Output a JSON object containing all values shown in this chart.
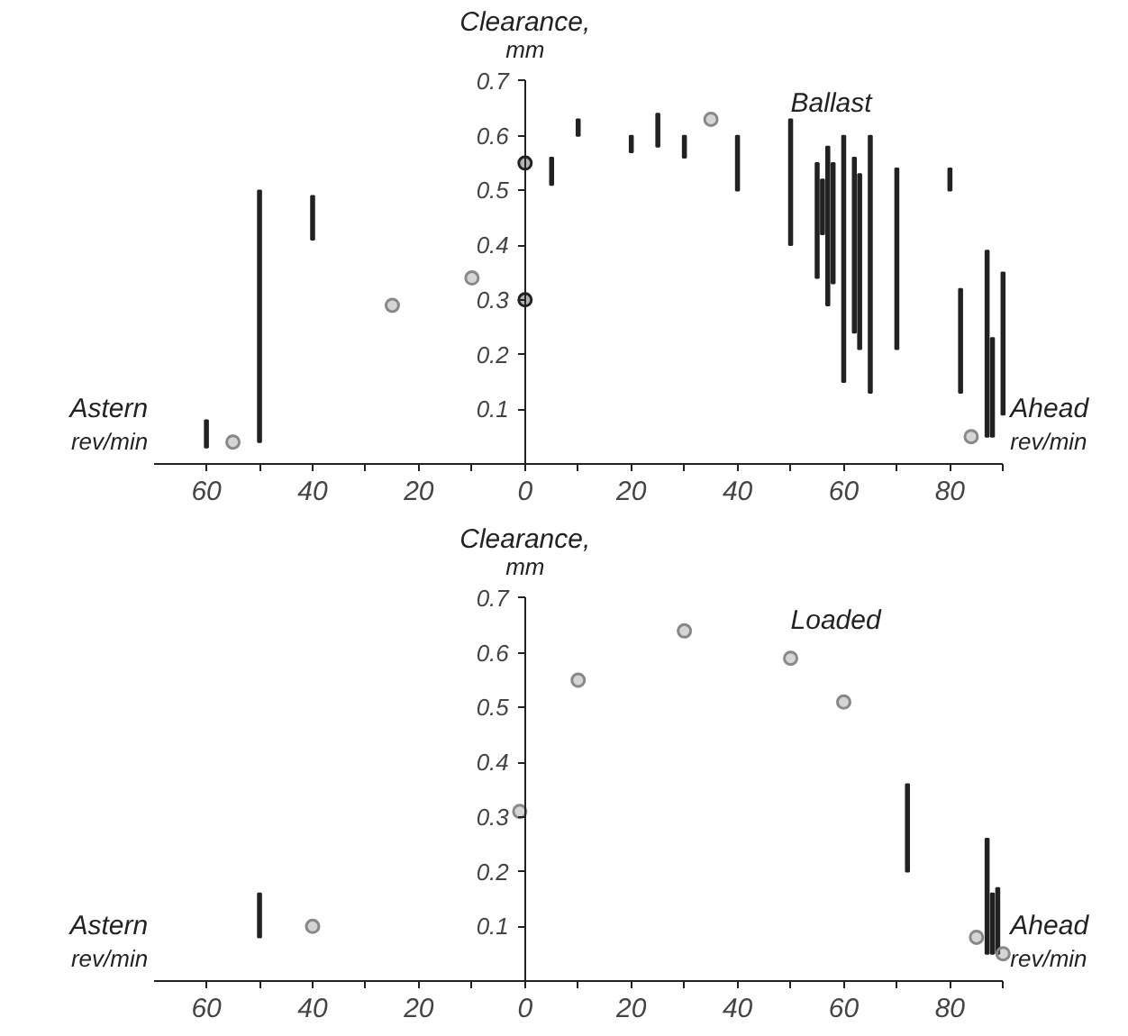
{
  "chart_data": [
    {
      "type": "bar",
      "title": "Ballast",
      "ylabel": "Clearance, mm",
      "annotations": [
        "Astern rev/min",
        "Ahead rev/min"
      ],
      "marker": "circle",
      "xlim": [
        -70,
        90
      ],
      "ylim": [
        0,
        0.7
      ],
      "xticks": [
        {
          "value": -60,
          "label": "60"
        },
        {
          "value": -50,
          "label": null
        },
        {
          "value": -40,
          "label": "40"
        },
        {
          "value": -30,
          "label": null
        },
        {
          "value": -20,
          "label": "20"
        },
        {
          "value": -10,
          "label": null
        },
        {
          "value": 0,
          "label": "0"
        },
        {
          "value": 10,
          "label": null
        },
        {
          "value": 20,
          "label": "20"
        },
        {
          "value": 30,
          "label": null
        },
        {
          "value": 40,
          "label": "40"
        },
        {
          "value": 50,
          "label": null
        },
        {
          "value": 60,
          "label": "60"
        },
        {
          "value": 70,
          "label": null
        },
        {
          "value": 80,
          "label": "80"
        },
        {
          "value": 90,
          "label": null
        }
      ],
      "yticks": [
        0.1,
        0.2,
        0.3,
        0.4,
        0.5,
        0.6,
        0.7
      ],
      "series": [
        {
          "color": "#222222",
          "x": [
            -60,
            -50,
            -40,
            5,
            10,
            20,
            25,
            30,
            40,
            50,
            55,
            56,
            57,
            58,
            60,
            62,
            63,
            65,
            70,
            80,
            82,
            87,
            88,
            90
          ],
          "base": [
            0.03,
            0.04,
            0.41,
            0.51,
            0.6,
            0.57,
            0.58,
            0.56,
            0.5,
            0.4,
            0.34,
            0.42,
            0.29,
            0.33,
            0.15,
            0.24,
            0.21,
            0.13,
            0.21,
            0.5,
            0.13,
            0.05,
            0.05,
            0.09
          ],
          "values": [
            0.05,
            0.46,
            0.08,
            0.05,
            0.03,
            0.03,
            0.06,
            0.04,
            0.1,
            0.23,
            0.21,
            0.1,
            0.29,
            0.22,
            0.45,
            0.32,
            0.32,
            0.47,
            0.33,
            0.04,
            0.19,
            0.34,
            0.18,
            0.26
          ]
        },
        {
          "type": "scatter",
          "color": "#888888",
          "x": [
            -55,
            -25,
            -10,
            35,
            84
          ],
          "values": [
            0.04,
            0.29,
            0.34,
            0.63,
            0.05
          ]
        },
        {
          "type": "scatter",
          "color": "#222222",
          "x": [
            0,
            0
          ],
          "values": [
            0.55,
            0.3
          ]
        }
      ]
    },
    {
      "type": "bar",
      "title": "Loaded",
      "ylabel": "Clearance, mm",
      "annotations": [
        "Astern rev/min",
        "Ahead rev/min"
      ],
      "marker": "circle",
      "xlim": [
        -70,
        90
      ],
      "ylim": [
        0,
        0.7
      ],
      "xticks": [
        {
          "value": -60,
          "label": "60"
        },
        {
          "value": -50,
          "label": null
        },
        {
          "value": -40,
          "label": "40"
        },
        {
          "value": -30,
          "label": null
        },
        {
          "value": -20,
          "label": "20"
        },
        {
          "value": -10,
          "label": null
        },
        {
          "value": 0,
          "label": "0"
        },
        {
          "value": 10,
          "label": null
        },
        {
          "value": 20,
          "label": "20"
        },
        {
          "value": 30,
          "label": null
        },
        {
          "value": 40,
          "label": "40"
        },
        {
          "value": 50,
          "label": null
        },
        {
          "value": 60,
          "label": "60"
        },
        {
          "value": 70,
          "label": null
        },
        {
          "value": 80,
          "label": "80"
        },
        {
          "value": 90,
          "label": null
        }
      ],
      "yticks": [
        0.1,
        0.2,
        0.3,
        0.4,
        0.5,
        0.6,
        0.7
      ],
      "series": [
        {
          "color": "#222222",
          "x": [
            -50,
            72,
            87,
            88,
            89
          ],
          "base": [
            0.08,
            0.2,
            0.05,
            0.05,
            0.05
          ],
          "values": [
            0.08,
            0.16,
            0.21,
            0.11,
            0.12
          ]
        },
        {
          "type": "scatter",
          "color": "#888888",
          "x": [
            -40,
            -1,
            10,
            30,
            50,
            60,
            85,
            90
          ],
          "values": [
            0.1,
            0.31,
            0.55,
            0.64,
            0.59,
            0.51,
            0.08,
            0.05
          ]
        }
      ]
    }
  ]
}
